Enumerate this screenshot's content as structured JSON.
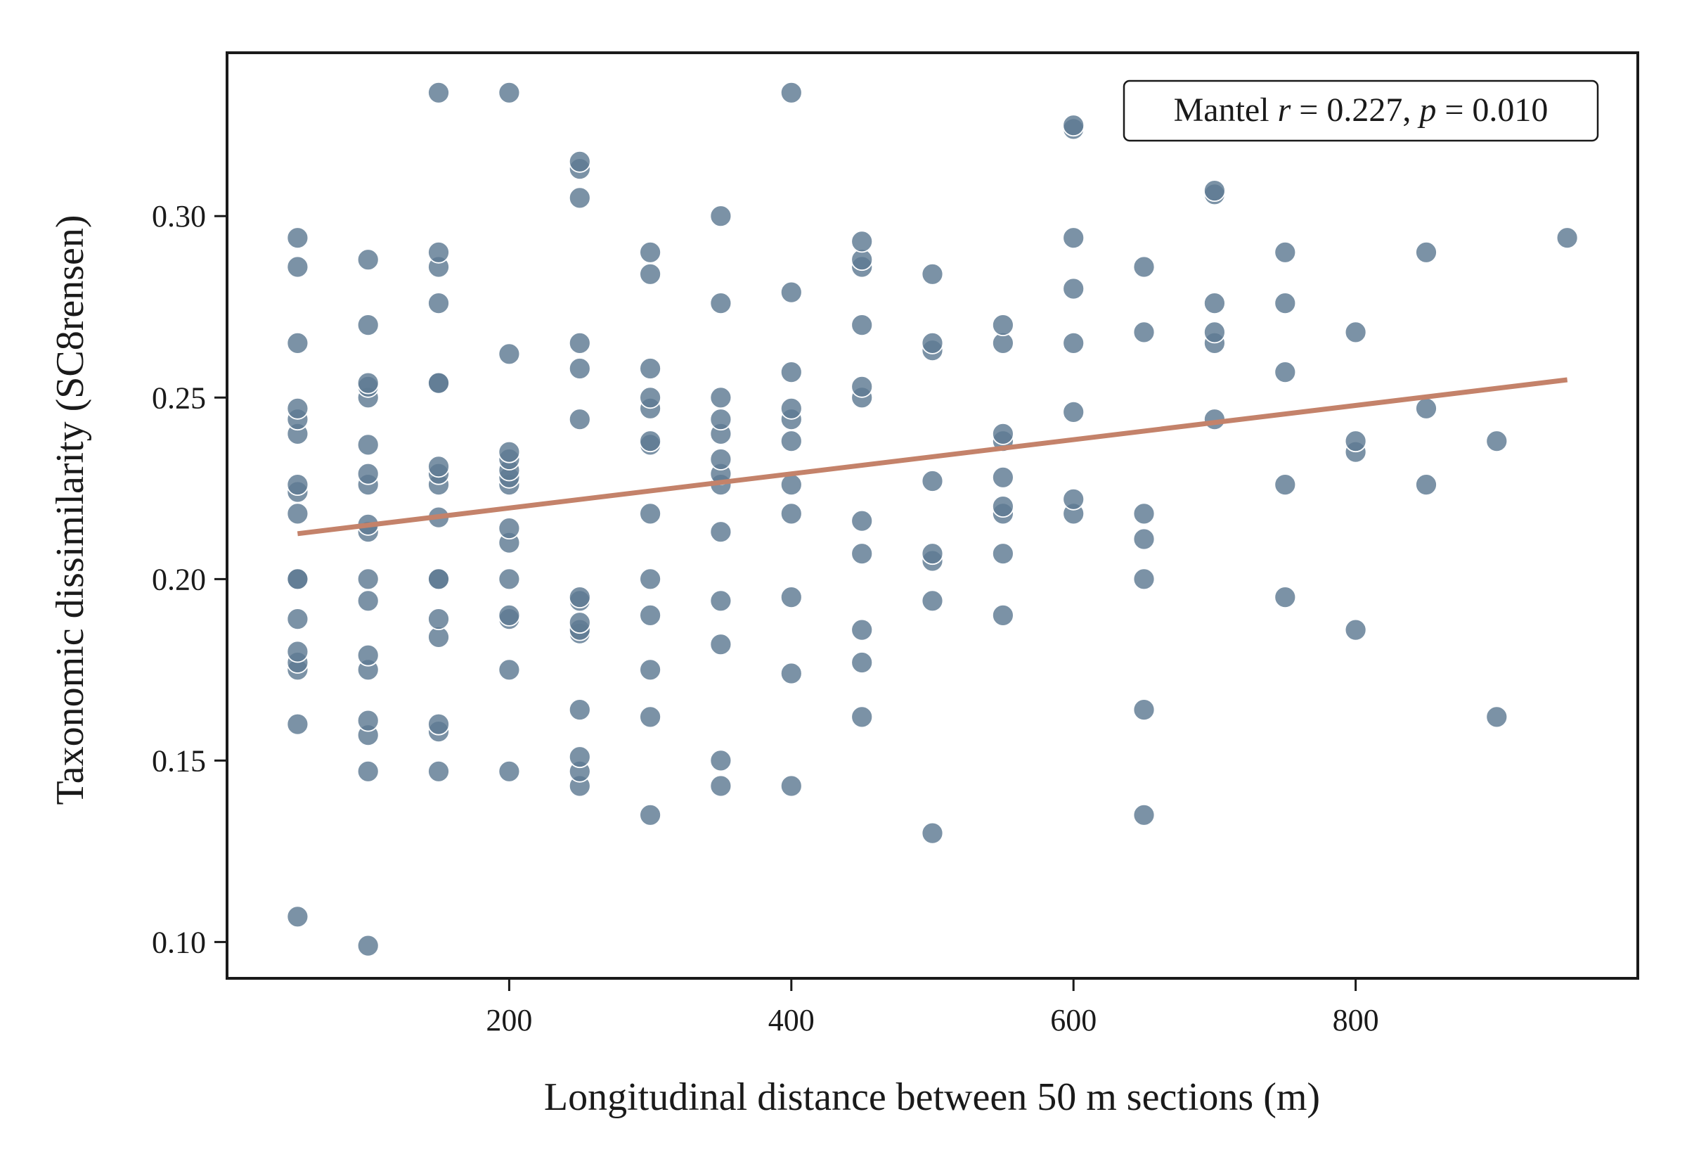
{
  "chart_data": {
    "type": "scatter",
    "title": "",
    "xlabel": "Longitudinal distance between 50 m sections (m)",
    "ylabel": "Taxonomic dissimilarity (SC8rensen)",
    "xlim": [
      0,
      1000
    ],
    "ylim": [
      0.09,
      0.345
    ],
    "xticks": [
      200,
      400,
      600,
      800
    ],
    "xtick_labels": [
      "200",
      "400",
      "600",
      "800"
    ],
    "yticks": [
      0.1,
      0.15,
      0.2,
      0.25,
      0.3
    ],
    "ytick_labels": [
      "0.10",
      "0.15",
      "0.20",
      "0.25",
      "0.30"
    ],
    "grid": false,
    "legend": "none",
    "annotation": {
      "prefix": "Mantel ",
      "r_symbol": "r",
      "r_text": " = 0.227,  ",
      "p_symbol": "p",
      "p_text": " = 0.010",
      "placement": "top-right"
    },
    "point_color": "#5e7a93",
    "line_color": "#c4826a",
    "trend_line": {
      "x": [
        50,
        950
      ],
      "y": [
        0.2125,
        0.2549
      ]
    },
    "points": [
      [
        50,
        0.107
      ],
      [
        50,
        0.16
      ],
      [
        50,
        0.175
      ],
      [
        50,
        0.177
      ],
      [
        50,
        0.18
      ],
      [
        50,
        0.189
      ],
      [
        50,
        0.2
      ],
      [
        50,
        0.2
      ],
      [
        50,
        0.218
      ],
      [
        50,
        0.224
      ],
      [
        50,
        0.226
      ],
      [
        50,
        0.24
      ],
      [
        50,
        0.244
      ],
      [
        50,
        0.247
      ],
      [
        50,
        0.265
      ],
      [
        50,
        0.286
      ],
      [
        50,
        0.294
      ],
      [
        100,
        0.099
      ],
      [
        100,
        0.147
      ],
      [
        100,
        0.157
      ],
      [
        100,
        0.161
      ],
      [
        100,
        0.175
      ],
      [
        100,
        0.179
      ],
      [
        100,
        0.194
      ],
      [
        100,
        0.2
      ],
      [
        100,
        0.213
      ],
      [
        100,
        0.215
      ],
      [
        100,
        0.226
      ],
      [
        100,
        0.229
      ],
      [
        100,
        0.237
      ],
      [
        100,
        0.25
      ],
      [
        100,
        0.253
      ],
      [
        100,
        0.254
      ],
      [
        100,
        0.27
      ],
      [
        100,
        0.288
      ],
      [
        150,
        0.147
      ],
      [
        150,
        0.158
      ],
      [
        150,
        0.16
      ],
      [
        150,
        0.184
      ],
      [
        150,
        0.189
      ],
      [
        150,
        0.2
      ],
      [
        150,
        0.2
      ],
      [
        150,
        0.217
      ],
      [
        150,
        0.226
      ],
      [
        150,
        0.229
      ],
      [
        150,
        0.231
      ],
      [
        150,
        0.254
      ],
      [
        150,
        0.254
      ],
      [
        150,
        0.276
      ],
      [
        150,
        0.286
      ],
      [
        150,
        0.29
      ],
      [
        150,
        0.334
      ],
      [
        200,
        0.147
      ],
      [
        200,
        0.175
      ],
      [
        200,
        0.189
      ],
      [
        200,
        0.19
      ],
      [
        200,
        0.2
      ],
      [
        200,
        0.21
      ],
      [
        200,
        0.214
      ],
      [
        200,
        0.226
      ],
      [
        200,
        0.228
      ],
      [
        200,
        0.23
      ],
      [
        200,
        0.233
      ],
      [
        200,
        0.235
      ],
      [
        200,
        0.262
      ],
      [
        200,
        0.334
      ],
      [
        250,
        0.143
      ],
      [
        250,
        0.147
      ],
      [
        250,
        0.151
      ],
      [
        250,
        0.164
      ],
      [
        250,
        0.185
      ],
      [
        250,
        0.186
      ],
      [
        250,
        0.188
      ],
      [
        250,
        0.194
      ],
      [
        250,
        0.195
      ],
      [
        250,
        0.244
      ],
      [
        250,
        0.258
      ],
      [
        250,
        0.265
      ],
      [
        250,
        0.305
      ],
      [
        250,
        0.313
      ],
      [
        250,
        0.315
      ],
      [
        300,
        0.135
      ],
      [
        300,
        0.162
      ],
      [
        300,
        0.175
      ],
      [
        300,
        0.19
      ],
      [
        300,
        0.2
      ],
      [
        300,
        0.218
      ],
      [
        300,
        0.237
      ],
      [
        300,
        0.238
      ],
      [
        300,
        0.247
      ],
      [
        300,
        0.25
      ],
      [
        300,
        0.258
      ],
      [
        300,
        0.284
      ],
      [
        300,
        0.29
      ],
      [
        350,
        0.143
      ],
      [
        350,
        0.15
      ],
      [
        350,
        0.182
      ],
      [
        350,
        0.194
      ],
      [
        350,
        0.213
      ],
      [
        350,
        0.226
      ],
      [
        350,
        0.229
      ],
      [
        350,
        0.233
      ],
      [
        350,
        0.24
      ],
      [
        350,
        0.244
      ],
      [
        350,
        0.25
      ],
      [
        350,
        0.276
      ],
      [
        350,
        0.3
      ],
      [
        400,
        0.143
      ],
      [
        400,
        0.174
      ],
      [
        400,
        0.195
      ],
      [
        400,
        0.218
      ],
      [
        400,
        0.226
      ],
      [
        400,
        0.238
      ],
      [
        400,
        0.244
      ],
      [
        400,
        0.247
      ],
      [
        400,
        0.257
      ],
      [
        400,
        0.279
      ],
      [
        400,
        0.334
      ],
      [
        450,
        0.162
      ],
      [
        450,
        0.177
      ],
      [
        450,
        0.186
      ],
      [
        450,
        0.207
      ],
      [
        450,
        0.216
      ],
      [
        450,
        0.25
      ],
      [
        450,
        0.253
      ],
      [
        450,
        0.27
      ],
      [
        450,
        0.286
      ],
      [
        450,
        0.288
      ],
      [
        450,
        0.293
      ],
      [
        500,
        0.13
      ],
      [
        500,
        0.194
      ],
      [
        500,
        0.205
      ],
      [
        500,
        0.207
      ],
      [
        500,
        0.227
      ],
      [
        500,
        0.263
      ],
      [
        500,
        0.265
      ],
      [
        500,
        0.284
      ],
      [
        550,
        0.19
      ],
      [
        550,
        0.207
      ],
      [
        550,
        0.218
      ],
      [
        550,
        0.22
      ],
      [
        550,
        0.228
      ],
      [
        550,
        0.238
      ],
      [
        550,
        0.24
      ],
      [
        550,
        0.265
      ],
      [
        550,
        0.27
      ],
      [
        600,
        0.218
      ],
      [
        600,
        0.222
      ],
      [
        600,
        0.246
      ],
      [
        600,
        0.265
      ],
      [
        600,
        0.28
      ],
      [
        600,
        0.294
      ],
      [
        600,
        0.324
      ],
      [
        600,
        0.325
      ],
      [
        650,
        0.135
      ],
      [
        650,
        0.164
      ],
      [
        650,
        0.2
      ],
      [
        650,
        0.211
      ],
      [
        650,
        0.218
      ],
      [
        650,
        0.268
      ],
      [
        650,
        0.286
      ],
      [
        700,
        0.244
      ],
      [
        700,
        0.265
      ],
      [
        700,
        0.268
      ],
      [
        700,
        0.276
      ],
      [
        700,
        0.306
      ],
      [
        700,
        0.307
      ],
      [
        750,
        0.195
      ],
      [
        750,
        0.226
      ],
      [
        750,
        0.257
      ],
      [
        750,
        0.276
      ],
      [
        750,
        0.29
      ],
      [
        800,
        0.186
      ],
      [
        800,
        0.235
      ],
      [
        800,
        0.238
      ],
      [
        800,
        0.268
      ],
      [
        850,
        0.226
      ],
      [
        850,
        0.247
      ],
      [
        850,
        0.29
      ],
      [
        900,
        0.162
      ],
      [
        900,
        0.238
      ],
      [
        950,
        0.294
      ]
    ]
  }
}
